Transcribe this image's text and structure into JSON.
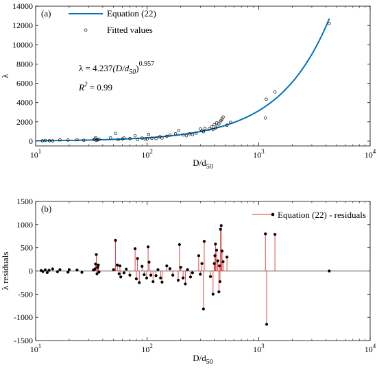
{
  "chart_data": [
    {
      "type": "scatter",
      "panel_label": "(a)",
      "xlabel_main": "D/d",
      "xlabel_sub": "50",
      "ylabel": "λ",
      "x_scale": "log",
      "xlim": [
        10,
        10000
      ],
      "ylim": [
        -500,
        14000
      ],
      "x_ticks": [
        10,
        100,
        1000,
        10000
      ],
      "x_tick_labels": [
        {
          "base": "10",
          "exp": "1"
        },
        {
          "base": "10",
          "exp": "2"
        },
        {
          "base": "10",
          "exp": "3"
        },
        {
          "base": "10",
          "exp": "4"
        }
      ],
      "y_ticks": [
        0,
        2000,
        4000,
        6000,
        8000,
        10000,
        12000,
        14000
      ],
      "y_tick_labels": [
        "0",
        "2000",
        "4000",
        "6000",
        "8000",
        "10000",
        "12000",
        "14000"
      ],
      "legend_position": "top-left",
      "legend": [
        {
          "label": "Equation (22)",
          "kind": "line"
        },
        {
          "label": "Fitted values",
          "kind": "marker"
        }
      ],
      "equation": {
        "lambda_prefix": "λ = 4.237",
        "paren_body": "(D/d",
        "paren_sub": "50",
        "paren_close": ")",
        "exponent": "0.957"
      },
      "r2": {
        "symbol": "R",
        "power": "2",
        "value": " = 0.99"
      },
      "curve": {
        "name": "Equation (22)",
        "coef": 4.237,
        "power": 0.957,
        "x_range": [
          10,
          4300
        ],
        "color": "#0070c0"
      },
      "points": [
        [
          11.5,
          30
        ],
        [
          12.2,
          80
        ],
        [
          13.3,
          50
        ],
        [
          14.2,
          20
        ],
        [
          16.5,
          130
        ],
        [
          19.5,
          110
        ],
        [
          23.5,
          150
        ],
        [
          27,
          90
        ],
        [
          33.5,
          170
        ],
        [
          34,
          230
        ],
        [
          34.5,
          350
        ],
        [
          35,
          80
        ],
        [
          36,
          120
        ],
        [
          37,
          200
        ],
        [
          47,
          340
        ],
        [
          52,
          800
        ],
        [
          55,
          150
        ],
        [
          60,
          230
        ],
        [
          62,
          330
        ],
        [
          70,
          260
        ],
        [
          78,
          560
        ],
        [
          82,
          160
        ],
        [
          90,
          310
        ],
        [
          96,
          210
        ],
        [
          100,
          230
        ],
        [
          103,
          700
        ],
        [
          110,
          300
        ],
        [
          120,
          260
        ],
        [
          130,
          450
        ],
        [
          136,
          320
        ],
        [
          150,
          500
        ],
        [
          160,
          620
        ],
        [
          180,
          760
        ],
        [
          192,
          1080
        ],
        [
          210,
          640
        ],
        [
          225,
          560
        ],
        [
          240,
          760
        ],
        [
          255,
          690
        ],
        [
          275,
          820
        ],
        [
          300,
          1250
        ],
        [
          310,
          1080
        ],
        [
          320,
          980
        ],
        [
          330,
          1340
        ],
        [
          360,
          1250
        ],
        [
          380,
          1480
        ],
        [
          390,
          1200
        ],
        [
          400,
          1700
        ],
        [
          410,
          1360
        ],
        [
          420,
          1900
        ],
        [
          430,
          1560
        ],
        [
          440,
          1800
        ],
        [
          450,
          2000
        ],
        [
          460,
          2150
        ],
        [
          470,
          2300
        ],
        [
          480,
          2500
        ],
        [
          520,
          1650
        ],
        [
          560,
          1950
        ],
        [
          1150,
          2400
        ],
        [
          1170,
          4350
        ],
        [
          1400,
          5100
        ],
        [
          4300,
          12200
        ]
      ]
    },
    {
      "type": "scatter",
      "panel_label": "(b)",
      "xlabel_main": "D/d",
      "xlabel_sub": "50",
      "ylabel": "λ residuals",
      "x_scale": "log",
      "xlim": [
        10,
        10000
      ],
      "ylim": [
        -1500,
        1500
      ],
      "x_ticks": [
        10,
        100,
        1000,
        10000
      ],
      "x_tick_labels": [
        {
          "base": "10",
          "exp": "1"
        },
        {
          "base": "10",
          "exp": "2"
        },
        {
          "base": "10",
          "exp": "3"
        },
        {
          "base": "10",
          "exp": "4"
        }
      ],
      "y_ticks": [
        -1500,
        -1000,
        -500,
        0,
        500,
        1000,
        1500
      ],
      "y_tick_labels": [
        "-1500",
        "-1000",
        "-500",
        "0",
        "500",
        "1000",
        "1500"
      ],
      "legend_position": "top-right",
      "legend": [
        {
          "label": "Equation (22) - residuals",
          "kind": "stem"
        }
      ],
      "stem_color": "#e03030",
      "zero_line": true,
      "points": [
        [
          11.2,
          10
        ],
        [
          11.6,
          -10
        ],
        [
          12.2,
          25
        ],
        [
          12.7,
          -35
        ],
        [
          13.2,
          15
        ],
        [
          14.2,
          45
        ],
        [
          15.7,
          -15
        ],
        [
          16.5,
          30
        ],
        [
          19.5,
          -25
        ],
        [
          20,
          30
        ],
        [
          23.5,
          20
        ],
        [
          26,
          -30
        ],
        [
          33,
          20
        ],
        [
          34,
          45
        ],
        [
          34.5,
          150
        ],
        [
          35,
          355
        ],
        [
          35.5,
          -60
        ],
        [
          36,
          80
        ],
        [
          36.5,
          130
        ],
        [
          37,
          -20
        ],
        [
          50,
          30
        ],
        [
          52,
          660
        ],
        [
          54,
          130
        ],
        [
          56,
          -60
        ],
        [
          57,
          110
        ],
        [
          58,
          -130
        ],
        [
          62,
          -40
        ],
        [
          65,
          40
        ],
        [
          70,
          -90
        ],
        [
          78,
          480
        ],
        [
          80,
          -170
        ],
        [
          82,
          270
        ],
        [
          85,
          -250
        ],
        [
          90,
          100
        ],
        [
          94,
          -80
        ],
        [
          99,
          -150
        ],
        [
          102,
          520
        ],
        [
          104,
          190
        ],
        [
          108,
          -90
        ],
        [
          113,
          -230
        ],
        [
          120,
          -100
        ],
        [
          125,
          30
        ],
        [
          132,
          -150
        ],
        [
          136,
          -240
        ],
        [
          150,
          110
        ],
        [
          160,
          50
        ],
        [
          170,
          -90
        ],
        [
          190,
          -200
        ],
        [
          195,
          570
        ],
        [
          200,
          80
        ],
        [
          210,
          -150
        ],
        [
          220,
          -280
        ],
        [
          230,
          30
        ],
        [
          245,
          -130
        ],
        [
          255,
          -40
        ],
        [
          290,
          330
        ],
        [
          300,
          -70
        ],
        [
          310,
          160
        ],
        [
          320,
          -820
        ],
        [
          325,
          640
        ],
        [
          370,
          -120
        ],
        [
          390,
          -500
        ],
        [
          400,
          160
        ],
        [
          405,
          330
        ],
        [
          410,
          580
        ],
        [
          420,
          450
        ],
        [
          430,
          220
        ],
        [
          440,
          -450
        ],
        [
          445,
          110
        ],
        [
          450,
          -230
        ],
        [
          455,
          900
        ],
        [
          462,
          980
        ],
        [
          470,
          430
        ],
        [
          480,
          200
        ],
        [
          520,
          300
        ],
        [
          1150,
          800
        ],
        [
          1180,
          -1150
        ],
        [
          1400,
          790
        ],
        [
          4300,
          0
        ]
      ]
    }
  ]
}
